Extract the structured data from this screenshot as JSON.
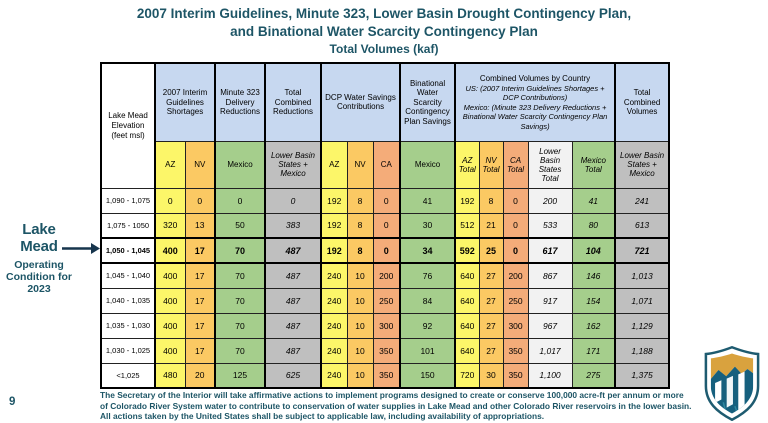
{
  "colors": {
    "title_teal": "#1D5566",
    "header_blue": "#C7D8F0",
    "az_yellow": "#FCF669",
    "nv_gold": "#FBC963",
    "ca_salmon": "#F4AC79",
    "mexico_green": "#A5CE8C",
    "total_gray": "#BFBFBF",
    "lbs_light": "#F2F2F2",
    "arrow_navy": "#16354D"
  },
  "title": {
    "line1": "2007 Interim Guidelines, Minute 323, Lower Basin Drought Contingency Plan,",
    "line2": "and Binational Water Scarcity Contingency Plan",
    "subtitle": "Total Volumes (kaf)"
  },
  "annotation": {
    "title": "Lake Mead",
    "subtitle": "Operating\nCondition for\n2023"
  },
  "table": {
    "corner_header": "Lake Mead\nElevation\n(feet msl)",
    "group_headers": [
      "2007 Interim Guidelines Shortages",
      "Minute 323 Delivery Reductions",
      "Total Combined Reductions",
      "DCP Water Savings Contributions",
      "Binational Water Scarcity Contingency Plan Savings"
    ],
    "combined_group": {
      "line1": "Combined Volumes by Country",
      "line2": "US: (2007 Interim Guidelines Shortages + DCP Contributions)",
      "line3": "Mexico: (Minute 323 Delivery Reductions + Binational Water Scarcity Contingency Plan Savings)"
    },
    "total_group": "Total Combined Volumes",
    "subheaders": [
      "AZ",
      "NV",
      "Mexico",
      "Lower Basin States + Mexico",
      "AZ",
      "NV",
      "CA",
      "Mexico",
      "AZ Total",
      "NV Total",
      "CA Total",
      "Lower Basin States Total",
      "Mexico Total",
      "Lower Basin States + Mexico"
    ],
    "rows": [
      {
        "elevation": "1,090 - 1,075",
        "bold": false,
        "values": [
          "0",
          "0",
          "0",
          "0",
          "192",
          "8",
          "0",
          "41",
          "192",
          "8",
          "0",
          "200",
          "41",
          "241"
        ]
      },
      {
        "elevation": "1,075 - 1050",
        "bold": false,
        "values": [
          "320",
          "13",
          "50",
          "383",
          "192",
          "8",
          "0",
          "30",
          "512",
          "21",
          "0",
          "533",
          "80",
          "613"
        ]
      },
      {
        "elevation": "1,050 - 1,045",
        "bold": true,
        "values": [
          "400",
          "17",
          "70",
          "487",
          "192",
          "8",
          "0",
          "34",
          "592",
          "25",
          "0",
          "617",
          "104",
          "721"
        ]
      },
      {
        "elevation": "1,045 - 1,040",
        "bold": false,
        "values": [
          "400",
          "17",
          "70",
          "487",
          "240",
          "10",
          "200",
          "76",
          "640",
          "27",
          "200",
          "867",
          "146",
          "1,013"
        ]
      },
      {
        "elevation": "1,040 - 1,035",
        "bold": false,
        "values": [
          "400",
          "17",
          "70",
          "487",
          "240",
          "10",
          "250",
          "84",
          "640",
          "27",
          "250",
          "917",
          "154",
          "1,071"
        ]
      },
      {
        "elevation": "1,035 - 1,030",
        "bold": false,
        "values": [
          "400",
          "17",
          "70",
          "487",
          "240",
          "10",
          "300",
          "92",
          "640",
          "27",
          "300",
          "967",
          "162",
          "1,129"
        ]
      },
      {
        "elevation": "1,030 - 1,025",
        "bold": false,
        "values": [
          "400",
          "17",
          "70",
          "487",
          "240",
          "10",
          "350",
          "101",
          "640",
          "27",
          "350",
          "1,017",
          "171",
          "1,188"
        ]
      },
      {
        "elevation": "<1,025",
        "bold": false,
        "values": [
          "480",
          "20",
          "125",
          "625",
          "240",
          "10",
          "350",
          "150",
          "720",
          "30",
          "350",
          "1,100",
          "275",
          "1,375"
        ]
      }
    ]
  },
  "footer": {
    "note": "The Secretary of the Interior will take affirmative actions to implement programs designed to create or conserve 100,000 acre-ft per annum or more\nof Colorado River System water to contribute to conservation of water supplies in Lake Mead and other Colorado River reservoirs in the lower basin.\nAll actions taken by the United States shall be subject to applicable law, including availability of appropriations.",
    "page_number": "9"
  },
  "logo": {
    "name": "bureau-of-reclamation-shield"
  }
}
